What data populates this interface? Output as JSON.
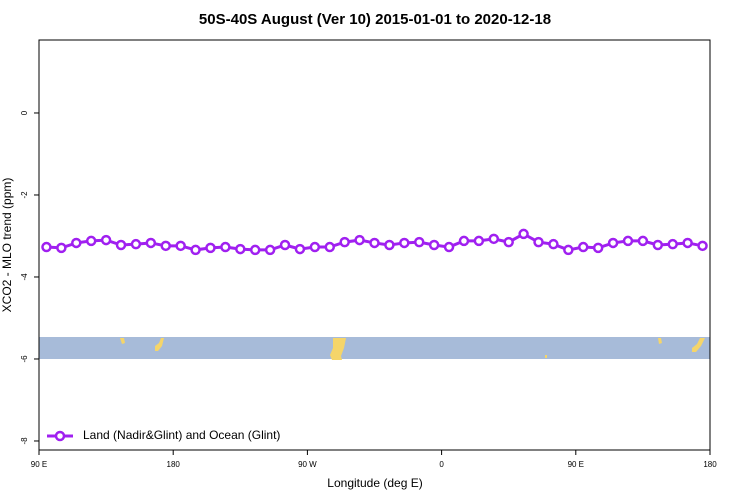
{
  "chart_data": {
    "type": "line",
    "title": "50S-40S August (Ver 10)   2015-01-01 to 2020-12-18",
    "x_label": "Longitude (deg E)",
    "y_label": "XCO2 - MLO trend (ppm)",
    "x": [
      95,
      105,
      115,
      125,
      135,
      145,
      155,
      165,
      175,
      185,
      195,
      205,
      215,
      225,
      235,
      245,
      255,
      265,
      275,
      285,
      295,
      305,
      315,
      325,
      335,
      345,
      355,
      365,
      375,
      385,
      395,
      405,
      415,
      425,
      435,
      445,
      455,
      465,
      475,
      485,
      495,
      505,
      515,
      525,
      535
    ],
    "series": [
      {
        "name": "Land (Nadir&Glint) and Ocean (Glint)",
        "color": "#a020f0",
        "values": [
          -3.27,
          -3.29,
          -3.17,
          -3.12,
          -3.1,
          -3.22,
          -3.2,
          -3.17,
          -3.24,
          -3.24,
          -3.34,
          -3.29,
          -3.27,
          -3.32,
          -3.34,
          -3.34,
          -3.22,
          -3.32,
          -3.27,
          -3.27,
          -3.15,
          -3.1,
          -3.17,
          -3.22,
          -3.17,
          -3.15,
          -3.22,
          -3.27,
          -3.12,
          -3.12,
          -3.07,
          -3.15,
          -2.95,
          -3.15,
          -3.2,
          -3.34,
          -3.27,
          -3.29,
          -3.17,
          -3.12,
          -3.12,
          -3.22,
          -3.2,
          -3.17,
          -3.24
        ]
      }
    ],
    "xlim": [
      90,
      540
    ],
    "xticks": [
      {
        "value": 90,
        "label": "90 E"
      },
      {
        "value": 180,
        "label": "180"
      },
      {
        "value": 270,
        "label": "90 W"
      },
      {
        "value": 360,
        "label": "0"
      },
      {
        "value": 450,
        "label": "90 E"
      },
      {
        "value": 540,
        "label": "180"
      }
    ],
    "ylim": [
      -8.22,
      1.78
    ],
    "yticks": [
      0,
      -2,
      -4,
      -6,
      -8
    ],
    "legend": "bottom-left"
  }
}
